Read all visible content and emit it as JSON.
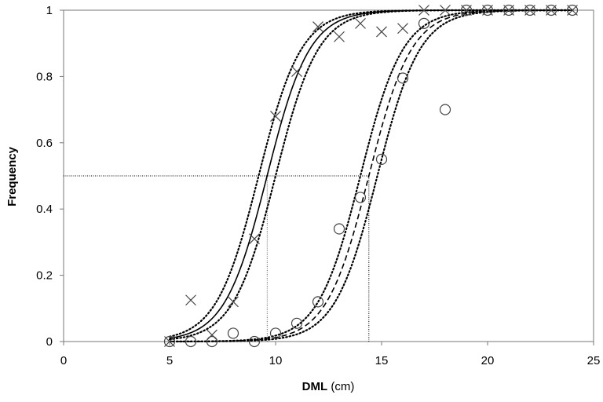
{
  "chart_data": {
    "type": "scatter",
    "title": "",
    "xlabel_bold": "DML",
    "xlabel_unit": "(cm)",
    "ylabel": "Frequency",
    "xlim": [
      0,
      25
    ],
    "ylim": [
      0,
      1
    ],
    "x_ticks": [
      "0",
      "5",
      "10",
      "15",
      "20",
      "25"
    ],
    "y_ticks": [
      "0",
      "0.2",
      "0.4",
      "0.6",
      "0.8",
      "1"
    ],
    "grid": false,
    "series": [
      {
        "marker": "x",
        "x": [
          5,
          6,
          7,
          8,
          9,
          10,
          11,
          12,
          13,
          14,
          15,
          16,
          17,
          18,
          19,
          20,
          21,
          22,
          23,
          24
        ],
        "y": [
          0.0,
          0.125,
          0.02,
          0.12,
          0.31,
          0.68,
          0.815,
          0.95,
          0.92,
          0.96,
          0.935,
          0.945,
          1.0,
          1.0,
          1.0,
          1.0,
          1.0,
          1.0,
          1.0,
          1.0
        ],
        "fit": {
          "style": "solid",
          "l50": 9.6,
          "scale": 1.0
        }
      },
      {
        "marker": "o",
        "x": [
          5,
          6,
          7,
          8,
          9,
          10,
          11,
          12,
          13,
          14,
          15,
          16,
          17,
          18,
          19,
          20,
          21,
          22,
          23,
          24
        ],
        "y": [
          0.0,
          0.0,
          0.0,
          0.025,
          0.0,
          0.025,
          0.055,
          0.12,
          0.34,
          0.435,
          0.55,
          0.795,
          0.96,
          0.7,
          1.0,
          1.0,
          1.0,
          1.0,
          1.0,
          1.0
        ],
        "fit": {
          "style": "dashed",
          "l50": 14.4,
          "scale": 1.0
        }
      }
    ],
    "confidence_band": {
      "style": "dotted",
      "offset": 0.4
    },
    "reference": {
      "y": 0.5,
      "x_values": [
        9.6,
        14.4
      ],
      "style": "dotted"
    }
  }
}
